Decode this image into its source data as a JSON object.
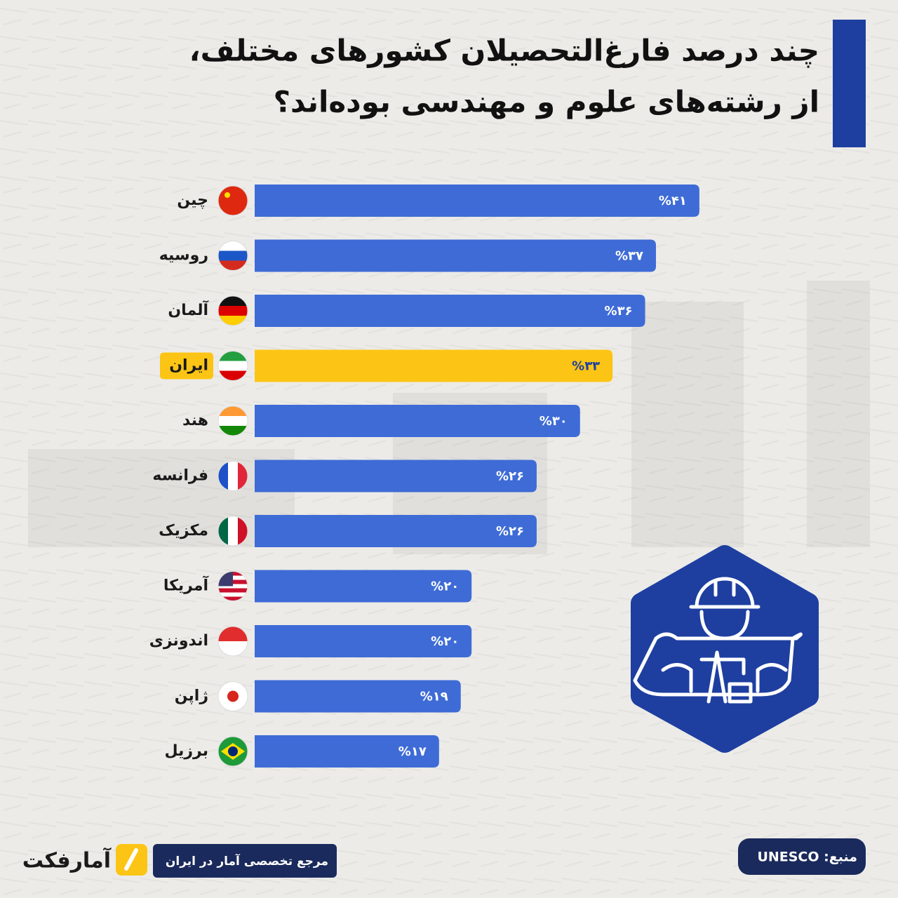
{
  "chart_data": {
    "type": "bar",
    "orientation": "horizontal",
    "title": [
      "چند درصد فارغ‌التحصیلان کشورهای مختلف،",
      "از رشته‌های علوم و مهندسی بوده‌اند؟"
    ],
    "categories": [
      "چین",
      "روسیه",
      "آلمان",
      "ایران",
      "هند",
      "فرانسه",
      "مکزیک",
      "آمریکا",
      "اندونزی",
      "ژاپن",
      "برزیل"
    ],
    "values": [
      41,
      37,
      36,
      33,
      30,
      26,
      26,
      20,
      20,
      19,
      17
    ],
    "value_labels": [
      "%۴۱",
      "%۳۷",
      "%۳۶",
      "%۳۳",
      "%۳۰",
      "%۲۶",
      "%۲۶",
      "%۲۰",
      "%۲۰",
      "%۱۹",
      "%۱۷"
    ],
    "colors": [
      "#3e6bd6",
      "#3e6bd6",
      "#3e6bd6",
      "#fcc515",
      "#3e6bd6",
      "#3e6bd6",
      "#3e6bd6",
      "#3e6bd6",
      "#3e6bd6",
      "#3e6bd6",
      "#3e6bd6"
    ],
    "source": "منبع: UNESCO",
    "tagline": "مرجع تخصصی آمار در ایران",
    "brand": "آمارفکت"
  }
}
